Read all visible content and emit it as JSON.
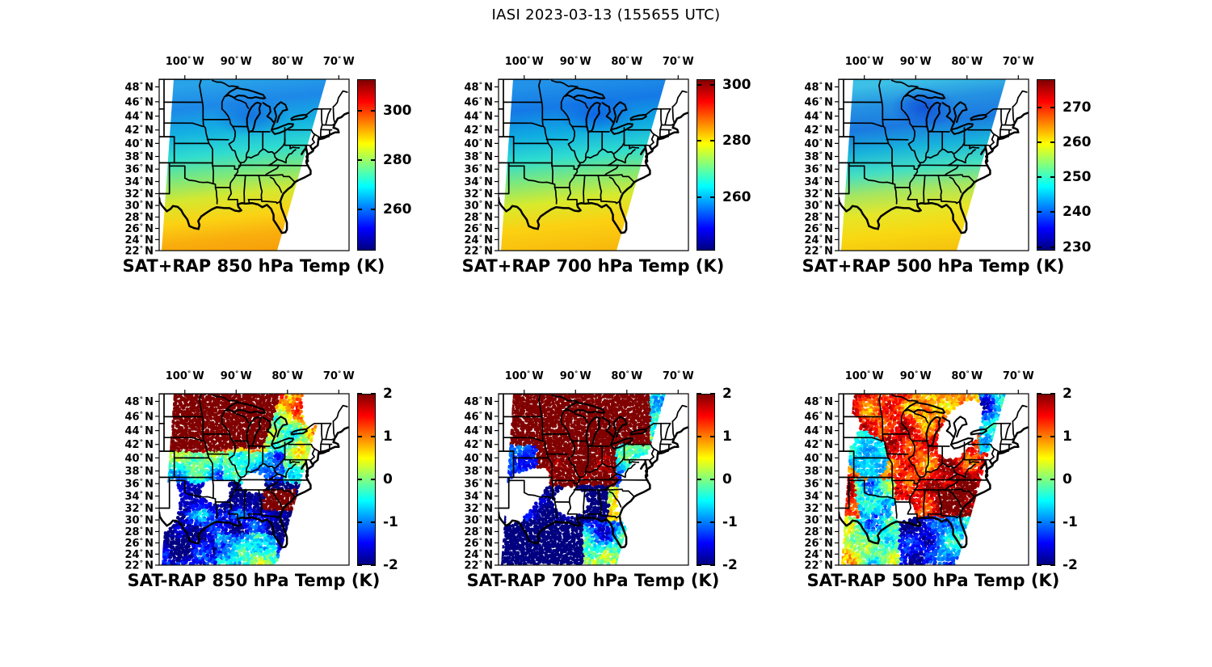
{
  "figure_title": "IASI 2023-03-13 (155655 UTC)",
  "axes": {
    "projection": "mercator",
    "lon_tick_values": [
      100,
      90,
      80,
      70
    ],
    "lon_suffix": "W",
    "lat_tick_values": [
      48,
      46,
      44,
      42,
      40,
      38,
      36,
      34,
      32,
      30,
      28,
      26,
      24,
      22
    ],
    "lat_suffix": "N",
    "lon_range_deg_w": [
      105,
      68
    ],
    "lat_range_deg_n": [
      22,
      49
    ]
  },
  "panels": [
    {
      "id": "sat_plus_rap_850",
      "title": "SAT+RAP 850 hPa Temp (K)",
      "row": 0,
      "col": 0,
      "kind": "filled",
      "colorbar": {
        "min": 243,
        "max": 313,
        "ticks": [
          300,
          280,
          260
        ]
      }
    },
    {
      "id": "sat_plus_rap_700",
      "title": "SAT+RAP 700 hPa Temp (K)",
      "row": 0,
      "col": 1,
      "kind": "filled",
      "colorbar": {
        "min": 241,
        "max": 302,
        "ticks": [
          300,
          280,
          260
        ]
      }
    },
    {
      "id": "sat_plus_rap_500",
      "title": "SAT+RAP 500 hPa Temp (K)",
      "row": 0,
      "col": 2,
      "kind": "filled",
      "colorbar": {
        "min": 229,
        "max": 278,
        "ticks": [
          270,
          260,
          250,
          240,
          230
        ]
      }
    },
    {
      "id": "sat_minus_rap_850",
      "title": "SAT-RAP 850 hPa Temp (K)",
      "row": 1,
      "col": 0,
      "kind": "scatter",
      "colorbar": {
        "min": -2,
        "max": 2,
        "ticks": [
          2,
          1,
          0,
          -1,
          -2
        ]
      }
    },
    {
      "id": "sat_minus_rap_700",
      "title": "SAT-RAP 700 hPa Temp (K)",
      "row": 1,
      "col": 1,
      "kind": "scatter",
      "colorbar": {
        "min": -2,
        "max": 2,
        "ticks": [
          2,
          1,
          0,
          -1,
          -2
        ]
      }
    },
    {
      "id": "sat_minus_rap_500",
      "title": "SAT-RAP 500 hPa Temp (K)",
      "row": 1,
      "col": 2,
      "kind": "scatter",
      "colorbar": {
        "min": -2,
        "max": 2,
        "ticks": [
          2,
          1,
          0,
          -1,
          -2
        ]
      }
    }
  ],
  "chart_data": [
    {
      "type": "heatmap",
      "title": "SAT+RAP 850 hPa Temp (K)",
      "units": "K",
      "level_hPa": 850,
      "colormap": "jet",
      "colorbar_range": [
        243,
        313
      ],
      "colorbar_ticks": [
        300,
        280,
        260
      ],
      "lon_range_deg_w": [
        105,
        68
      ],
      "lat_range_deg_n": [
        22,
        49
      ],
      "pattern": "850 hPa temperature retrieval: ~252-260 K (blue) over the upper Midwest and Great Lakes, ~265-275 K (cyan-green) mid-latitudes, rising to ~288-296 K (yellow-orange) along the Gulf coast and Mexico; no data west of the swath edge or over New England."
    },
    {
      "type": "heatmap",
      "title": "SAT+RAP 700 hPa Temp (K)",
      "units": "K",
      "level_hPa": 700,
      "colormap": "jet",
      "colorbar_range": [
        241,
        302
      ],
      "colorbar_ticks": [
        300,
        280,
        260
      ],
      "lon_range_deg_w": [
        105,
        68
      ],
      "lat_range_deg_n": [
        22,
        49
      ],
      "pattern": "700 hPa temperatures: deep blue minimum (~250 K) over Lake Michigan/Wisconsin, cyan-green (~265-272 K) central states, yellow-orange (~282-288 K) across Texas, the Gulf and Mexico."
    },
    {
      "type": "heatmap",
      "title": "SAT+RAP 500 hPa Temp (K)",
      "units": "K",
      "level_hPa": 500,
      "colormap": "jet",
      "colorbar_range": [
        229,
        278
      ],
      "colorbar_ticks": [
        270,
        260,
        250,
        240,
        230
      ],
      "lon_range_deg_w": [
        105,
        68
      ],
      "lat_range_deg_n": [
        22,
        49
      ],
      "pattern": "500 hPa temperatures: dark blue minimum (~238-242 K) over Wisconsin/Michigan, cyan ~248-252 K mid-latitudes, yellow ~262-268 K over the Gulf of Mexico."
    },
    {
      "type": "scatter",
      "title": "SAT-RAP 850 hPa Temp (K)",
      "units": "K",
      "level_hPa": 850,
      "colormap": "jet",
      "colorbar_range": [
        -2,
        2
      ],
      "colorbar_ticks": [
        2,
        1,
        0,
        -1,
        -2
      ],
      "lon_range_deg_w": [
        105,
        68
      ],
      "lat_range_deg_n": [
        22,
        49
      ],
      "pattern": "Satellite-minus-model differences: saturated warm bias > +2 K (dark red) north of ~44N, mixed +-1 K band through the Ohio valley, widespread cold bias -1 to -2 K (blue) over the southern plains and Gulf states, mixed speckle over Mexico/Gulf; white gaps where no retrievals."
    },
    {
      "type": "scatter",
      "title": "SAT-RAP 700 hPa Temp (K)",
      "units": "K",
      "level_hPa": 700,
      "colormap": "jet",
      "colorbar_range": [
        -2,
        2
      ],
      "colorbar_ticks": [
        2,
        1,
        0,
        -1,
        -2
      ],
      "lon_range_deg_w": [
        105,
        68
      ],
      "lat_range_deg_n": [
        22,
        49
      ],
      "pattern": "700 hPa differences: large dark-red (>+2 K) region from the northern plains through the mid-Mississippi valley, warm bias along the southeast coast, strong cold bias (-2 K, dark blue) over Texas and the western Gulf, mixed speckle south of 28N."
    },
    {
      "type": "scatter",
      "title": "SAT-RAP 500 hPa Temp (K)",
      "units": "K",
      "level_hPa": 500,
      "colormap": "jet",
      "colorbar_range": [
        -2,
        2
      ],
      "colorbar_ticks": [
        2,
        1,
        0,
        -1,
        -2
      ],
      "lon_range_deg_w": [
        105,
        68
      ],
      "lat_range_deg_n": [
        22,
        49
      ],
      "pattern": "500 hPa differences: predominantly warm bias +1 to >+2 K (orange/red) across most of the domain, cyan/blue pockets near the northeast swath edge and cold bias patches (-1 to -2 K) over the Gulf of Mexico and Florida latitudes."
    }
  ]
}
